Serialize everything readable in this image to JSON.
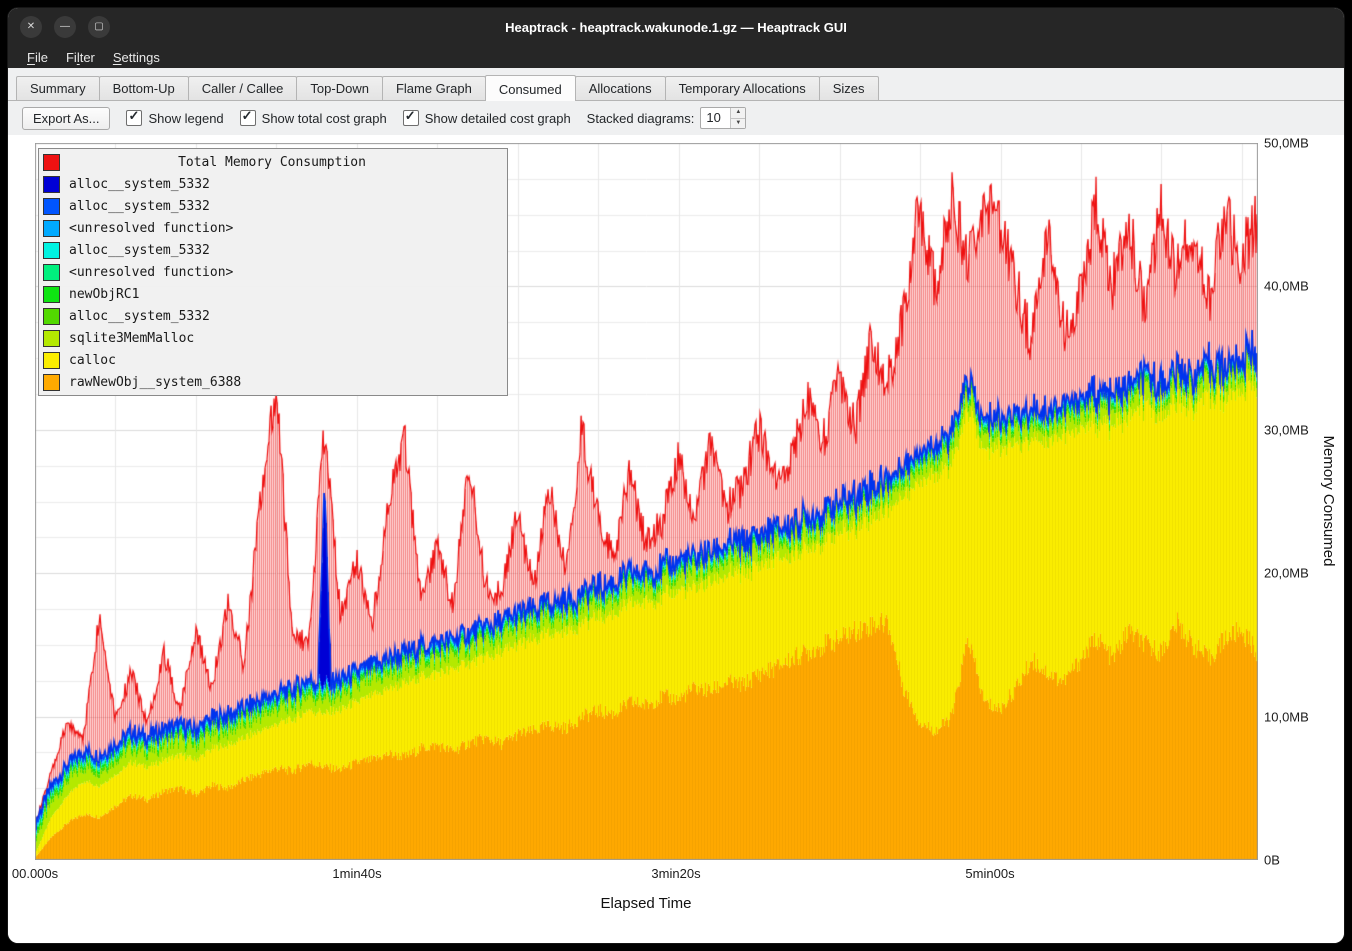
{
  "window": {
    "title": "Heaptrack - heaptrack.wakunode.1.gz — Heaptrack GUI",
    "controls": [
      {
        "name": "close",
        "glyph": "✕"
      },
      {
        "name": "minimize",
        "glyph": "—"
      },
      {
        "name": "maximize",
        "glyph": "▢"
      }
    ]
  },
  "menubar": {
    "items": [
      {
        "label": "File",
        "accel": 0
      },
      {
        "label": "Filter",
        "accel": 2
      },
      {
        "label": "Settings",
        "accel": 0
      }
    ]
  },
  "tabs": {
    "active_index": 5,
    "items": [
      "Summary",
      "Bottom-Up",
      "Caller / Callee",
      "Top-Down",
      "Flame Graph",
      "Consumed",
      "Allocations",
      "Temporary Allocations",
      "Sizes"
    ]
  },
  "toolbar": {
    "export_label": "Export As...",
    "checkboxes": [
      {
        "label": "Show legend",
        "checked": true
      },
      {
        "label": "Show total cost graph",
        "checked": true
      },
      {
        "label": "Show detailed cost graph",
        "checked": true
      }
    ],
    "stacked_label": "Stacked diagrams:",
    "stacked_value": "10"
  },
  "axes": {
    "xlabel": "Elapsed Time",
    "ylabel": "Memory Consumed",
    "x_ticks": [
      "00.000s",
      "1min40s",
      "3min20s",
      "5min00s"
    ],
    "y_ticks": [
      "0B",
      "10,0MB",
      "20,0MB",
      "30,0MB",
      "40,0MB",
      "50,0MB"
    ]
  },
  "legend": {
    "title": "Total Memory Consumption",
    "total_color": "#ee1111",
    "entries": [
      {
        "label": "alloc__system_5332",
        "color": "#0000d5"
      },
      {
        "label": "alloc__system_5332",
        "color": "#0055ff"
      },
      {
        "label": "<unresolved function>",
        "color": "#00aaff"
      },
      {
        "label": "alloc__system_5332",
        "color": "#00f2e1"
      },
      {
        "label": "<unresolved function>",
        "color": "#00f07e"
      },
      {
        "label": "newObjRC1",
        "color": "#0ee412"
      },
      {
        "label": "alloc__system_5332",
        "color": "#52d900"
      },
      {
        "label": "sqlite3MemMalloc",
        "color": "#b4e900"
      },
      {
        "label": "calloc",
        "color": "#fbee00"
      },
      {
        "label": "rawNewObj__system_6388",
        "color": "#ffaa00"
      }
    ]
  },
  "chart_data": {
    "type": "area",
    "stacked": true,
    "title": "Total Memory Consumption",
    "xlabel": "Elapsed Time",
    "ylabel": "Memory Consumed",
    "x_unit": "seconds",
    "x_range_s": [
      0,
      380
    ],
    "y_range_mb": [
      0,
      50
    ],
    "x_step_s": 5,
    "x_tick_labels": [
      "00.000s",
      "1min40s",
      "3min20s",
      "5min00s"
    ],
    "y_tick_labels": [
      "0B",
      "10,0MB",
      "20,0MB",
      "30,0MB",
      "40,0MB",
      "50,0MB"
    ],
    "grid": true,
    "legend_position": "top-left",
    "series_bottom_to_top": [
      {
        "name": "rawNewObj__system_6388",
        "color": "#ffaa00",
        "values": [
          0.2,
          1.6,
          2.6,
          3.2,
          3.0,
          3.8,
          4.5,
          4.2,
          4.8,
          5.0,
          4.6,
          5.2,
          5.0,
          5.6,
          6.0,
          6.4,
          6.2,
          6.8,
          6.5,
          6.3,
          6.8,
          7.0,
          7.4,
          7.2,
          7.8,
          8.0,
          7.6,
          8.2,
          8.5,
          8.1,
          8.8,
          9.0,
          9.4,
          9.2,
          10.0,
          10.4,
          10.2,
          11.0,
          10.8,
          11.4,
          11.2,
          12.0,
          11.8,
          12.4,
          12.2,
          13.0,
          13.4,
          14.0,
          14.5,
          15.0,
          15.4,
          16.0,
          16.4,
          16.6,
          12.0,
          9.6,
          9.0,
          10.0,
          15.5,
          11.0,
          10.5,
          12.0,
          14.0,
          13.0,
          12.5,
          14.0,
          15.5,
          14.0,
          16.0,
          15.0,
          14.5,
          16.5,
          15.0,
          14.0,
          15.5,
          16.0,
          14.5
        ]
      },
      {
        "name": "calloc",
        "color": "#fbee00",
        "values": [
          0.3,
          1.4,
          1.9,
          2.3,
          2.2,
          2.2,
          2.3,
          2.3,
          2.2,
          2.3,
          2.4,
          2.6,
          3.0,
          2.9,
          3.0,
          3.1,
          3.6,
          3.7,
          3.7,
          4.2,
          4.2,
          4.5,
          4.6,
          5.0,
          5.0,
          5.0,
          5.7,
          5.6,
          5.7,
          6.4,
          6.2,
          6.3,
          6.4,
          6.8,
          6.5,
          6.6,
          7.0,
          6.8,
          7.2,
          6.9,
          7.6,
          7.0,
          7.5,
          7.4,
          7.8,
          7.5,
          7.6,
          7.3,
          7.3,
          7.2,
          7.4,
          7.3,
          7.6,
          7.9,
          13.5,
          16.9,
          18.0,
          17.5,
          16.0,
          17.5,
          18.3,
          17.0,
          15.5,
          16.2,
          17.3,
          16.0,
          15.0,
          16.2,
          15.0,
          16.5,
          16.7,
          15.5,
          16.8,
          18.5,
          16.7,
          17.0,
          19.0
        ]
      },
      {
        "name": "sqlite3MemMalloc",
        "color": "#b4e900",
        "const": 1.0
      },
      {
        "name": "alloc__system_5332",
        "color": "#52d900",
        "const": 0.25
      },
      {
        "name": "newObjRC1",
        "color": "#0ee412",
        "const": 0.2
      },
      {
        "name": "<unresolved function>",
        "color": "#00f07e",
        "const": 0.12
      },
      {
        "name": "alloc__system_5332",
        "color": "#00f2e1",
        "const": 0.12
      },
      {
        "name": "<unresolved function>",
        "color": "#00aaff",
        "const": 0.1
      },
      {
        "name": "alloc__system_5332",
        "color": "#0055ff",
        "const": 0.25
      },
      {
        "name": "alloc__system_5332",
        "color": "#0000d5",
        "const": 0.08,
        "spike": {
          "t": 90,
          "value": 14,
          "width": 2
        }
      }
    ],
    "total": {
      "name": "Total Memory Consumption",
      "color": "#ee1111",
      "values": [
        2.5,
        6,
        9.5,
        8.5,
        17,
        10,
        13,
        9.5,
        14.5,
        10.5,
        16,
        12,
        18,
        13.5,
        25,
        33,
        16,
        15,
        30,
        17,
        21,
        16.5,
        25,
        29,
        18,
        22,
        17.5,
        28,
        19,
        18.5,
        24,
        19,
        26,
        20,
        30,
        24,
        21,
        27,
        22,
        23.5,
        28,
        24,
        29,
        24.5,
        26,
        30,
        26.5,
        28,
        32,
        29,
        34,
        30,
        36,
        33,
        38,
        45.5,
        40,
        45.8,
        42,
        46,
        44.5,
        40,
        36,
        43.5,
        37,
        39,
        45.5,
        40,
        44.5,
        38,
        45.5,
        41,
        44,
        39,
        45,
        42,
        44.5
      ]
    }
  }
}
